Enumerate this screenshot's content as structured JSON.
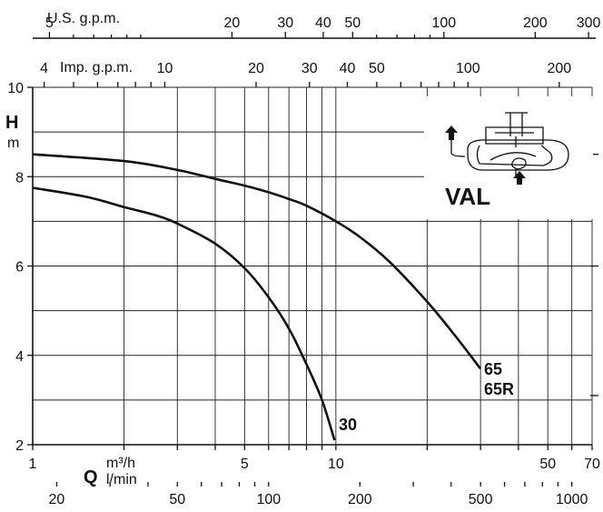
{
  "chart_data": {
    "type": "line",
    "x_scale": "log",
    "xlim": [
      1,
      70
    ],
    "ylim": [
      2,
      10
    ],
    "grid": true,
    "y_axis": {
      "label": "H",
      "unit": "m",
      "ticks": [
        2,
        4,
        6,
        8,
        10
      ]
    },
    "x_axis": {
      "label": "Q",
      "unit_top": "m³/h",
      "unit_bottom": "l/min",
      "ticks": [
        1,
        5,
        10,
        50,
        70
      ]
    },
    "gridlines_x": [
      1,
      2,
      3,
      4,
      5,
      6,
      7,
      8,
      9,
      10,
      20,
      30,
      40,
      50,
      60,
      70
    ],
    "gridlines_y": [
      2,
      3,
      4,
      5,
      6,
      7,
      8,
      9,
      10
    ],
    "top_axis_usgpm": {
      "label": "U.S. g.p.m.",
      "ticks": [
        "5",
        "20",
        "30",
        "40",
        "50",
        "100",
        "200",
        "300"
      ]
    },
    "top_axis_impgpm": {
      "label": "Imp. g.p.m.",
      "ticks": [
        "4",
        "10",
        "20",
        "30",
        "40",
        "50",
        "100",
        "200"
      ]
    },
    "bottom_axis_lmin": {
      "ticks": [
        "20",
        "50",
        "100",
        "200",
        "500",
        "1000"
      ]
    },
    "series": [
      {
        "name": "30",
        "x": [
          1,
          1.5,
          2,
          2.5,
          3,
          4,
          5,
          6,
          7,
          8,
          9,
          9.9
        ],
        "y": [
          7.75,
          7.55,
          7.32,
          7.15,
          6.95,
          6.5,
          5.95,
          5.3,
          4.6,
          3.8,
          3.0,
          2.1
        ]
      },
      {
        "name": "65\n65R",
        "x": [
          1,
          2,
          3,
          4,
          5,
          6,
          7,
          8,
          10,
          12,
          15,
          20,
          25,
          30
        ],
        "y": [
          8.5,
          8.35,
          8.15,
          7.95,
          7.8,
          7.65,
          7.5,
          7.35,
          7.0,
          6.65,
          6.1,
          5.2,
          4.4,
          3.7
        ]
      }
    ],
    "annotations": {
      "inset_label": "VAL"
    }
  },
  "labels": {
    "series_30": "30",
    "series_65": "65",
    "series_65r": "65R"
  }
}
